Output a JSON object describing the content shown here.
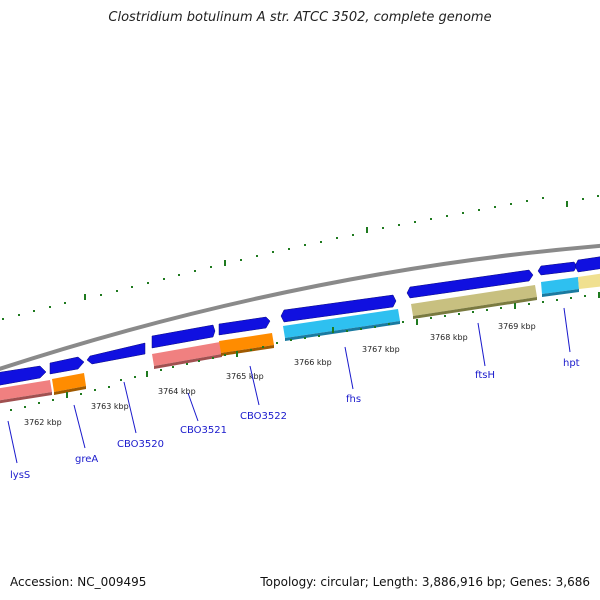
{
  "title": "Clostridium botulinum A str. ATCC 3502, complete genome",
  "footer": {
    "accession": "Accession: NC_009495",
    "summary": "Topology: circular; Length: 3,886,916 bp; Genes: 3,686"
  },
  "colors": {
    "backbone": "#8a8a8a",
    "gene_arrow": "#1010e0",
    "tick": "#1f7a1f",
    "label": "#1a1acc"
  },
  "scale_labels": [
    "3762 kbp",
    "3763 kbp",
    "3764 kbp",
    "3765 kbp",
    "3766 kbp",
    "3767 kbp",
    "3768 kbp",
    "3769 kbp"
  ],
  "gene_labels": [
    "lysS",
    "greA",
    "CBO3520",
    "CBO3521",
    "CBO3522",
    "fhs",
    "ftsH",
    "hpt"
  ]
}
